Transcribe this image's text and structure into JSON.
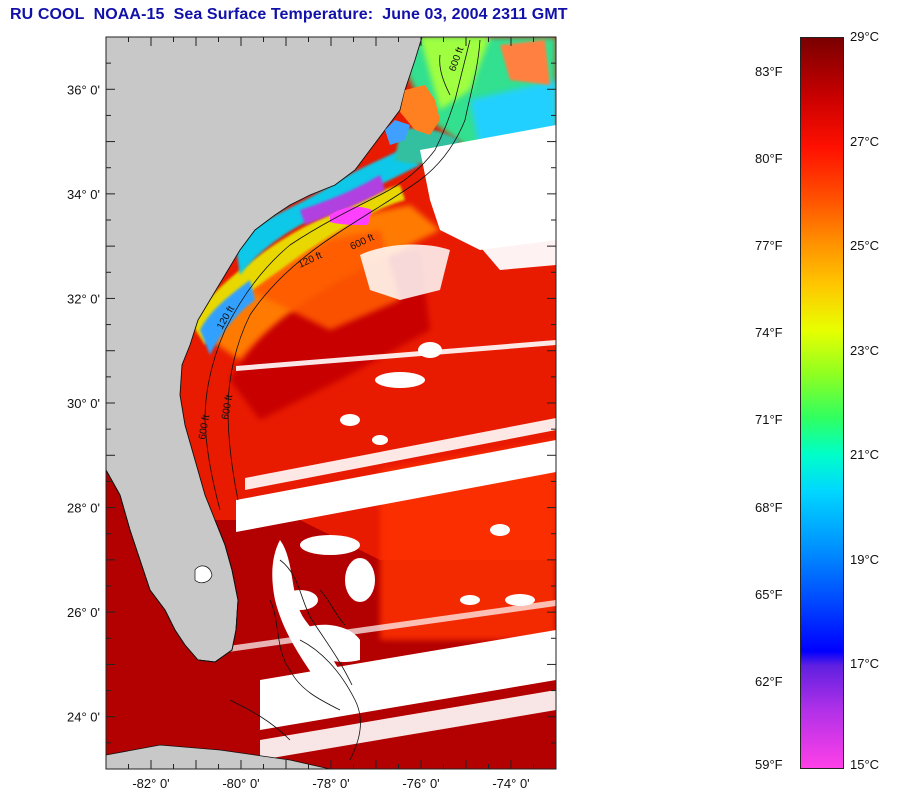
{
  "title": {
    "org": "RU COOL",
    "satellite": "NOAA-15",
    "product": "Sea Surface Temperature:",
    "datetime": "June 03, 2004 2311 GMT"
  },
  "map": {
    "lat_range": [
      23.0,
      37.0
    ],
    "lon_range": [
      -83.0,
      -73.0
    ],
    "lat_labels": [
      "36° 0'",
      "34° 0'",
      "32° 0'",
      "30° 0'",
      "28° 0'",
      "26° 0'",
      "24° 0'"
    ],
    "lon_labels": [
      "-82° 0'",
      "-80° 0'",
      "-78° 0'",
      "-76° 0'",
      "-74° 0'"
    ],
    "contour_labels": [
      "600 ft",
      "120 ft",
      "600 ft",
      "600 ft",
      "120 ft",
      "600 ft"
    ],
    "colors": {
      "land": "#c8c8c8",
      "cloud": "#ffffff",
      "gulf_stream": "#e00000",
      "shelf": "#ff8800",
      "cold": "#2080ff"
    }
  },
  "colorbar": {
    "celsius_labels": [
      "29°C",
      "27°C",
      "25°C",
      "23°C",
      "21°C",
      "19°C",
      "17°C",
      "15°C"
    ],
    "fahrenheit_labels": [
      "83°F",
      "80°F",
      "77°F",
      "74°F",
      "71°F",
      "68°F",
      "65°F",
      "62°F",
      "59°F"
    ],
    "range_c": [
      15,
      29
    ]
  }
}
